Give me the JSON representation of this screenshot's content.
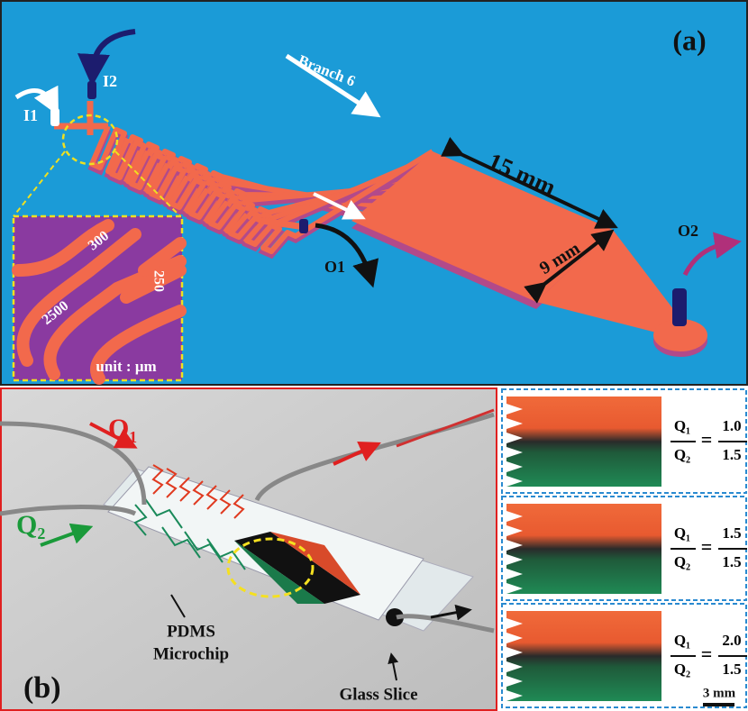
{
  "panel_a": {
    "label": "(a)",
    "inlets": [
      "I1",
      "I2"
    ],
    "branch": "Branch 6",
    "length": "15 mm",
    "width": "9 mm",
    "outlets": [
      "O1",
      "O2"
    ],
    "inset": {
      "labels": [
        "300",
        "250",
        "2500"
      ],
      "unit": "unit : μm"
    }
  },
  "panel_b": {
    "label": "(b)",
    "flows": [
      "Q₁",
      "Q₂"
    ],
    "chip": [
      "PDMS",
      "Microchip"
    ],
    "slide": "Glass Slice"
  },
  "panel_c": {
    "ratios": [
      {
        "numerator_label": "Q₁",
        "equals": "=",
        "denominator_label": "Q₂",
        "numerator": "1.0",
        "denominator": "1.5"
      },
      {
        "numerator_label": "Q₁",
        "equals": "=",
        "denominator_label": "Q₂",
        "numerator": "1.5",
        "denominator": "1.5"
      },
      {
        "numerator_label": "Q₁",
        "equals": "=",
        "denominator_label": "Q₂",
        "numerator": "2.0",
        "denominator": "1.5"
      }
    ],
    "scale_bar": "3 mm"
  }
}
